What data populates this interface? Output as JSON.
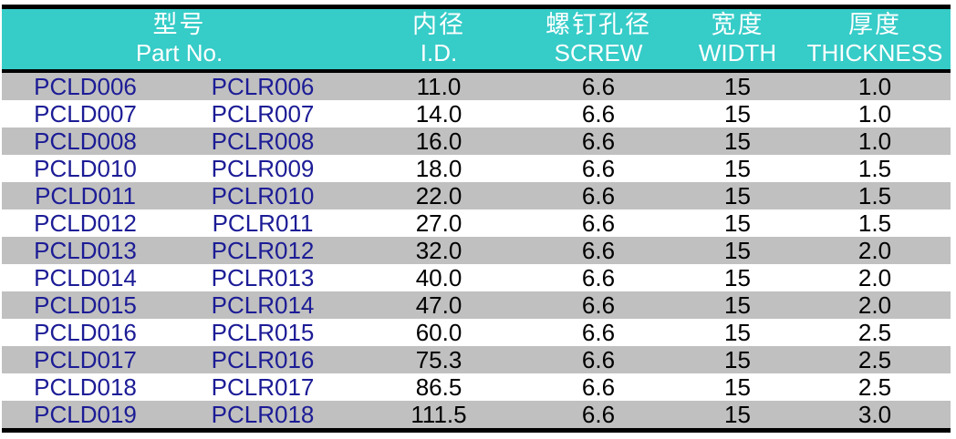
{
  "table": {
    "headers": [
      {
        "zh": "型号",
        "en": "Part No."
      },
      {
        "zh": "内径",
        "en": "I.D."
      },
      {
        "zh": "螺钉孔径",
        "en": "SCREW"
      },
      {
        "zh": "宽度",
        "en": "WIDTH"
      },
      {
        "zh": "厚度",
        "en": "THICKNESS"
      }
    ],
    "rows": [
      [
        "PCLD006",
        "PCLR006",
        "11.0",
        "6.6",
        "15",
        "1.0"
      ],
      [
        "PCLD007",
        "PCLR007",
        "14.0",
        "6.6",
        "15",
        "1.0"
      ],
      [
        "PCLD008",
        "PCLR008",
        "16.0",
        "6.6",
        "15",
        "1.0"
      ],
      [
        "PCLD010",
        "PCLR009",
        "18.0",
        "6.6",
        "15",
        "1.5"
      ],
      [
        "PCLD011",
        "PCLR010",
        "22.0",
        "6.6",
        "15",
        "1.5"
      ],
      [
        "PCLD012",
        "PCLR011",
        "27.0",
        "6.6",
        "15",
        "1.5"
      ],
      [
        "PCLD013",
        "PCLR012",
        "32.0",
        "6.6",
        "15",
        "2.0"
      ],
      [
        "PCLD014",
        "PCLR013",
        "40.0",
        "6.6",
        "15",
        "2.0"
      ],
      [
        "PCLD015",
        "PCLR014",
        "47.0",
        "6.6",
        "15",
        "2.0"
      ],
      [
        "PCLD016",
        "PCLR015",
        "60.0",
        "6.6",
        "15",
        "2.5"
      ],
      [
        "PCLD017",
        "PCLR016",
        "75.3",
        "6.6",
        "15",
        "2.5"
      ],
      [
        "PCLD018",
        "PCLR017",
        "86.5",
        "6.6",
        "15",
        "2.5"
      ],
      [
        "PCLD019",
        "PCLR018",
        "111.5",
        "6.6",
        "15",
        "3.0"
      ]
    ]
  },
  "colors": {
    "header_bg": "#36CCC8",
    "header_text": "#FFFFFF",
    "row_bg": "#FFFFFF",
    "row_alt_bg": "#C0C0C0",
    "part_no_text": "#1C1C96",
    "value_text": "#000000",
    "border": "#000000"
  }
}
